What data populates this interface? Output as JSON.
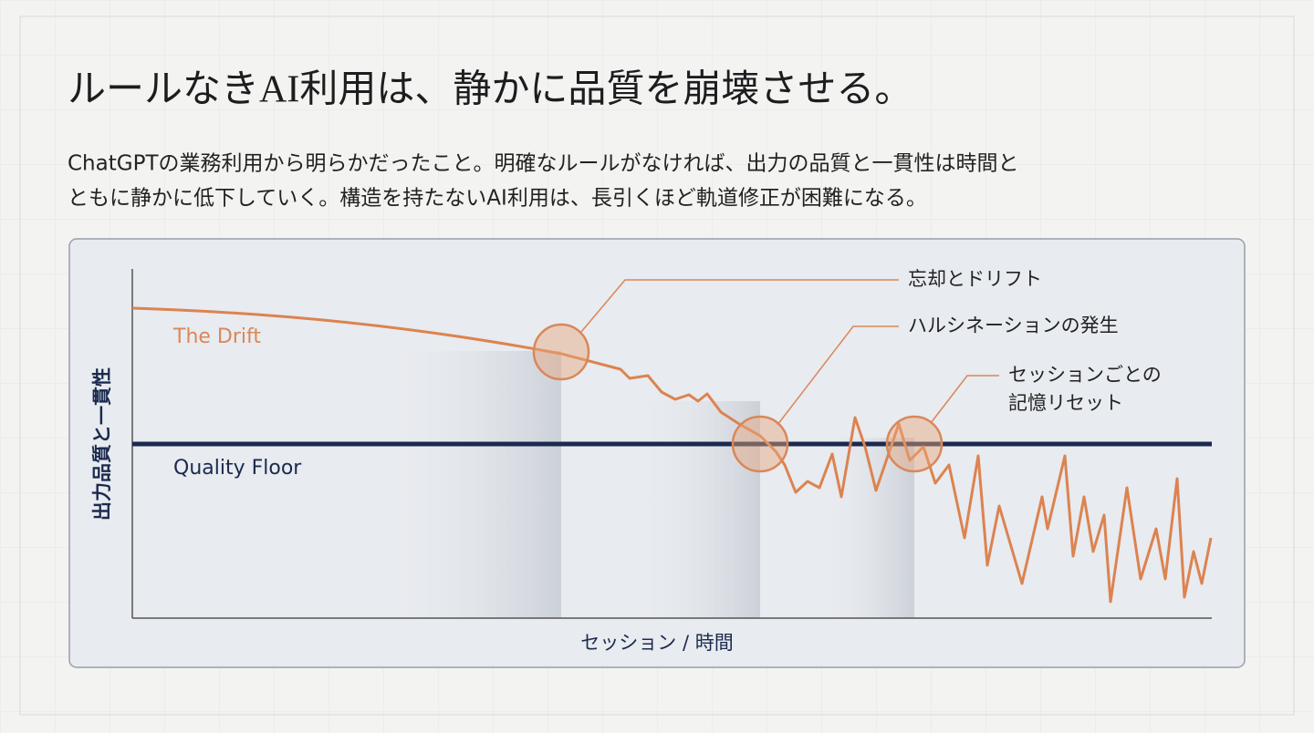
{
  "header": {
    "title": "ルールなきAI利用は、静かに品質を崩壊させる。",
    "description": [
      "ChatGPTの業務利用から明らかだったこと。明確なルールがなければ、出力の品質と一貫性は時間と",
      "ともに静かに低下していく。構造を持たないAI利用は、長引くほど軌道修正が困難になる。"
    ]
  },
  "diagram": {
    "y_axis_label": "出力品質と一貫性",
    "x_axis_label": "セッション / 時間",
    "drift_label": "The Drift",
    "floor_label": "Quality Floor",
    "callouts": [
      {
        "lines": [
          "忘却とドリフト"
        ]
      },
      {
        "lines": [
          "ハルシネーションの発生"
        ]
      },
      {
        "lines": [
          "セッションごとの",
          "記憶リセット"
        ]
      }
    ]
  }
}
